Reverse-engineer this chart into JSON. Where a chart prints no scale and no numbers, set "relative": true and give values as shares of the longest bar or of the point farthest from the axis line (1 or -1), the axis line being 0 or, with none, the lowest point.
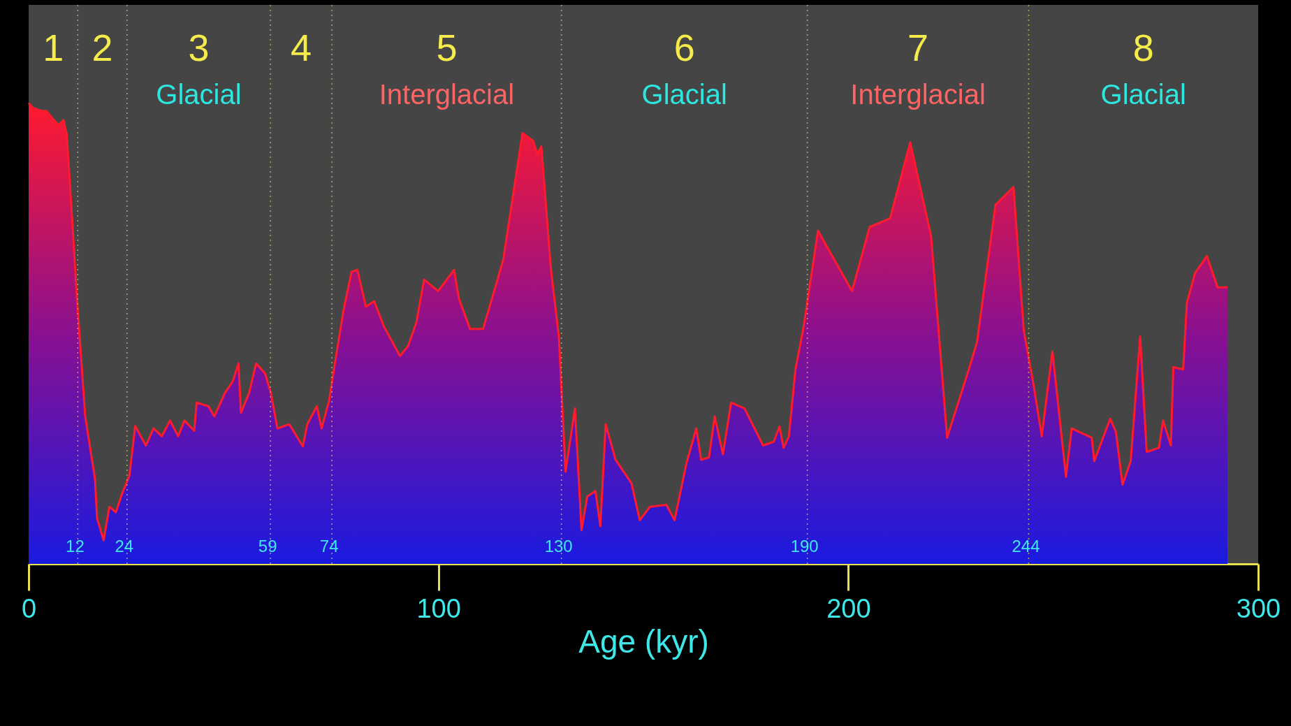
{
  "chart_data": {
    "type": "area",
    "relative": true,
    "xlabel": "Age (kyr)",
    "xlim": [
      0,
      300
    ],
    "xticks": [
      0,
      100,
      200,
      300
    ],
    "x": [
      0,
      1,
      3,
      4.3,
      5.9,
      7.3,
      8.5,
      9.3,
      10.4,
      11.8,
      13.8,
      16.2,
      16.7,
      18.3,
      19.7,
      21.3,
      22.7,
      24.6,
      26,
      28.6,
      30.5,
      32.5,
      34.5,
      36.5,
      38,
      40.4,
      41,
      43.9,
      45.3,
      47.9,
      49.8,
      51.2,
      51.8,
      53.8,
      55.5,
      57.7,
      59.1,
      60.7,
      63.6,
      66.9,
      68,
      70.3,
      71.5,
      73.3,
      74.8,
      76.8,
      78.8,
      80.2,
      82.3,
      84.3,
      86.7,
      90.6,
      92.6,
      94.6,
      96.5,
      99.9,
      103.8,
      105,
      107.7,
      110.9,
      115.8,
      120.5,
      123.1,
      124.1,
      125.1,
      127.4,
      129.4,
      131,
      133.3,
      134.9,
      136.3,
      138.3,
      139.5,
      140.8,
      143.2,
      147.1,
      149.1,
      151.6,
      155.6,
      157.6,
      160.5,
      162.9,
      164.1,
      166,
      167.4,
      169.4,
      171.4,
      174.7,
      179.2,
      181.8,
      183.2,
      184.2,
      185.5,
      187.1,
      189.1,
      192.6,
      200.9,
      205.2,
      210.2,
      215.1,
      220.2,
      224.1,
      229.4,
      231.4,
      235.9,
      240.3,
      242.8,
      245.2,
      247.2,
      249.8,
      253.1,
      254.5,
      259.4,
      260,
      263.9,
      265.3,
      266.9,
      268.9,
      271.2,
      272.8,
      275.8,
      276.8,
      278.7,
      279.3,
      281.7,
      282.6,
      284.6,
      287.5,
      290.1,
      292.5
    ],
    "series": [
      {
        "color": "#ff1a2e",
        "values": [
          1.0,
          0.99,
          0.983,
          0.983,
          0.966,
          0.952,
          0.963,
          0.932,
          0.779,
          0.575,
          0.32,
          0.184,
          0.099,
          0.051,
          0.124,
          0.112,
          0.15,
          0.192,
          0.299,
          0.257,
          0.294,
          0.277,
          0.311,
          0.277,
          0.311,
          0.289,
          0.35,
          0.342,
          0.32,
          0.371,
          0.396,
          0.435,
          0.328,
          0.371,
          0.435,
          0.413,
          0.371,
          0.294,
          0.303,
          0.255,
          0.303,
          0.342,
          0.294,
          0.354,
          0.439,
          0.549,
          0.634,
          0.638,
          0.558,
          0.57,
          0.515,
          0.451,
          0.473,
          0.524,
          0.617,
          0.592,
          0.638,
          0.575,
          0.51,
          0.51,
          0.66,
          0.935,
          0.918,
          0.889,
          0.906,
          0.643,
          0.49,
          0.2,
          0.337,
          0.073,
          0.146,
          0.158,
          0.082,
          0.303,
          0.226,
          0.175,
          0.095,
          0.124,
          0.128,
          0.095,
          0.218,
          0.294,
          0.226,
          0.231,
          0.32,
          0.238,
          0.35,
          0.337,
          0.257,
          0.265,
          0.298,
          0.252,
          0.277,
          0.422,
          0.515,
          0.723,
          0.592,
          0.731,
          0.75,
          0.915,
          0.711,
          0.274,
          0.422,
          0.481,
          0.779,
          0.818,
          0.507,
          0.388,
          0.277,
          0.461,
          0.189,
          0.294,
          0.274,
          0.223,
          0.315,
          0.286,
          0.172,
          0.223,
          0.493,
          0.243,
          0.252,
          0.311,
          0.257,
          0.427,
          0.422,
          0.566,
          0.631,
          0.668,
          0.6,
          0.6
        ]
      }
    ],
    "ref_lines": [
      {
        "axis": "x",
        "value": 12,
        "label": "12",
        "line_style": "dotted"
      },
      {
        "axis": "x",
        "value": 24,
        "label": "24",
        "line_style": "dotted"
      },
      {
        "axis": "x",
        "value": 59,
        "label": "59",
        "line_style": "dotted"
      },
      {
        "axis": "x",
        "value": 74,
        "label": "74",
        "line_style": "dotted"
      },
      {
        "axis": "x",
        "value": 130,
        "label": "130",
        "line_style": "dotted"
      },
      {
        "axis": "x",
        "value": 190,
        "label": "190",
        "line_style": "dotted"
      },
      {
        "axis": "x",
        "value": 244,
        "label": "244",
        "line_style": "dotted"
      }
    ],
    "annotations": [
      "1",
      "2",
      "3",
      "4",
      "5",
      "6",
      "7",
      "8",
      "Glacial",
      "Interglacial",
      "Glacial",
      "Interglacial",
      "Glacial"
    ],
    "grid": false
  }
}
